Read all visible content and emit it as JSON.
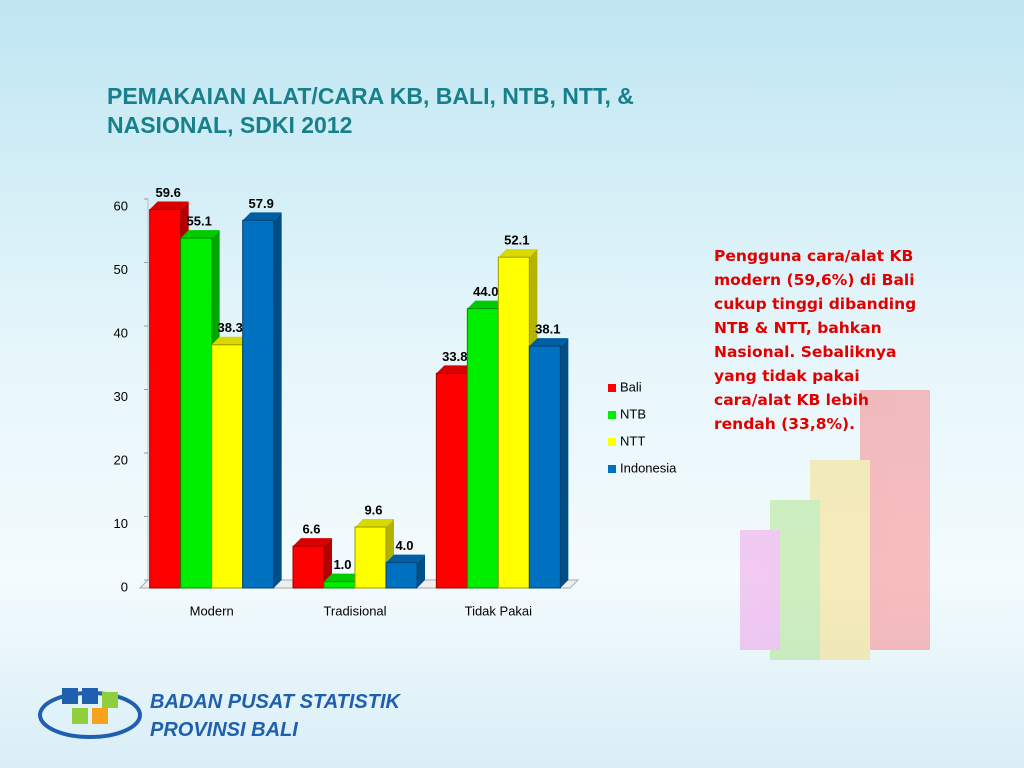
{
  "chart_data": {
    "type": "bar",
    "title": "PEMAKAIAN ALAT/CARA KB, BALI, NTB, NTT, & NASIONAL, SDKI 2012",
    "categories": [
      "Modern",
      "Tradisional",
      "Tidak Pakai"
    ],
    "series": [
      {
        "name": "Bali",
        "color": "#ff0000",
        "values": [
          59.6,
          6.6,
          33.8
        ],
        "value_labels": [
          "59.6",
          "6.6",
          "33.8"
        ]
      },
      {
        "name": "NTB",
        "color": "#00ee00",
        "values": [
          55.1,
          1.0,
          44.0
        ],
        "value_labels": [
          "55.1",
          "1.0",
          "44.0"
        ]
      },
      {
        "name": "NTT",
        "color": "#ffff00",
        "values": [
          38.3,
          9.6,
          52.1
        ],
        "value_labels": [
          "38.3",
          "9.6",
          "52.1"
        ]
      },
      {
        "name": "Indonesia",
        "color": "#0070c0",
        "values": [
          57.9,
          4.0,
          38.1
        ],
        "value_labels": [
          "57.9",
          "4.0",
          "38.1"
        ]
      }
    ],
    "ylim": [
      0,
      60
    ],
    "yticks": [
      0,
      10,
      20,
      30,
      40,
      50,
      60
    ],
    "legend": "right"
  },
  "annotation": "Pengguna cara/alat KB modern (59,6%) di Bali cukup tinggi dibanding NTB & NTT, bahkan Nasional. Sebaliknya yang tidak pakai cara/alat KB lebih rendah (33,8%).",
  "footer": {
    "line1": "BADAN PUSAT STATISTIK",
    "line2": "PROVINSI BALI"
  }
}
